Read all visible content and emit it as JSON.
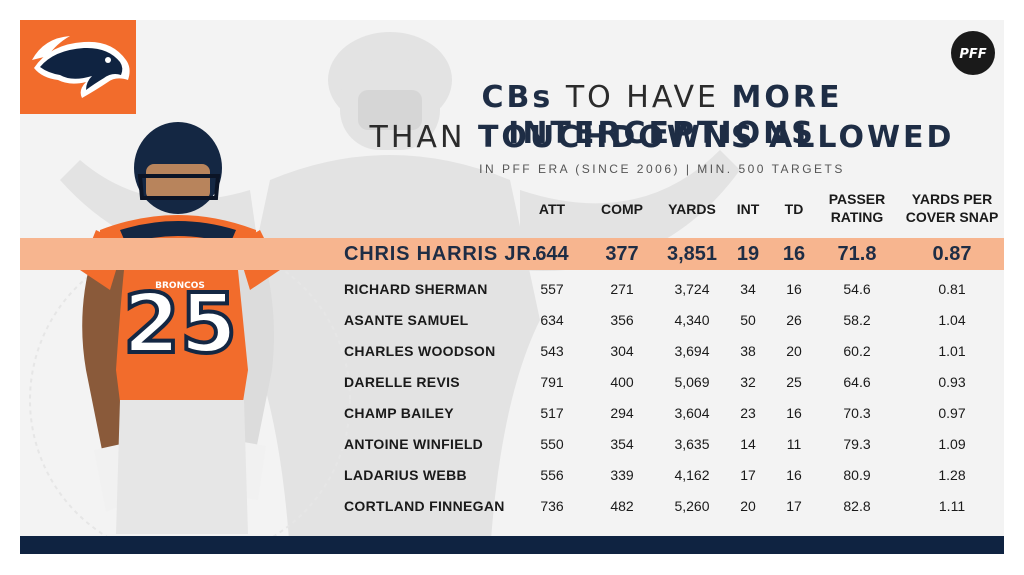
{
  "title": {
    "line1_a": "CBs",
    "line1_b": "TO HAVE",
    "line1_c": "MORE INTERCEPTIONS",
    "line2_a": "THAN",
    "line2_b": "TOUCHDOWNS ALLOWED"
  },
  "subtitle": "IN PFF ERA (SINCE 2006) | MIN. 500 TARGETS",
  "brand": {
    "logo_text": "PFF",
    "team_color": "#f26c2c",
    "navy": "#1e2d45",
    "highlight": "#f7b58f"
  },
  "player": {
    "jersey_number": "25",
    "jersey_text": "BRONCOS"
  },
  "columns": {
    "att": "ATT",
    "comp": "COMP",
    "yards": "YARDS",
    "int": "INT",
    "td": "TD",
    "passer_rating_1": "PASSER",
    "passer_rating_2": "RATING",
    "ypcs_1": "YARDS PER",
    "ypcs_2": "COVER SNAP"
  },
  "rows": [
    {
      "name": "CHRIS HARRIS JR.",
      "att": "644",
      "comp": "377",
      "yards": "3,851",
      "int": "19",
      "td": "16",
      "rating": "71.8",
      "ypcs": "0.87"
    },
    {
      "name": "RICHARD SHERMAN",
      "att": "557",
      "comp": "271",
      "yards": "3,724",
      "int": "34",
      "td": "16",
      "rating": "54.6",
      "ypcs": "0.81"
    },
    {
      "name": "ASANTE SAMUEL",
      "att": "634",
      "comp": "356",
      "yards": "4,340",
      "int": "50",
      "td": "26",
      "rating": "58.2",
      "ypcs": "1.04"
    },
    {
      "name": "CHARLES WOODSON",
      "att": "543",
      "comp": "304",
      "yards": "3,694",
      "int": "38",
      "td": "20",
      "rating": "60.2",
      "ypcs": "1.01"
    },
    {
      "name": "DARELLE REVIS",
      "att": "791",
      "comp": "400",
      "yards": "5,069",
      "int": "32",
      "td": "25",
      "rating": "64.6",
      "ypcs": "0.93"
    },
    {
      "name": "CHAMP BAILEY",
      "att": "517",
      "comp": "294",
      "yards": "3,604",
      "int": "23",
      "td": "16",
      "rating": "70.3",
      "ypcs": "0.97"
    },
    {
      "name": "ANTOINE WINFIELD",
      "att": "550",
      "comp": "354",
      "yards": "3,635",
      "int": "14",
      "td": "11",
      "rating": "79.3",
      "ypcs": "1.09"
    },
    {
      "name": "LADARIUS WEBB",
      "att": "556",
      "comp": "339",
      "yards": "4,162",
      "int": "17",
      "td": "16",
      "rating": "80.9",
      "ypcs": "1.28"
    },
    {
      "name": "CORTLAND FINNEGAN",
      "att": "736",
      "comp": "482",
      "yards": "5,260",
      "int": "20",
      "td": "17",
      "rating": "82.8",
      "ypcs": "1.11"
    }
  ]
}
